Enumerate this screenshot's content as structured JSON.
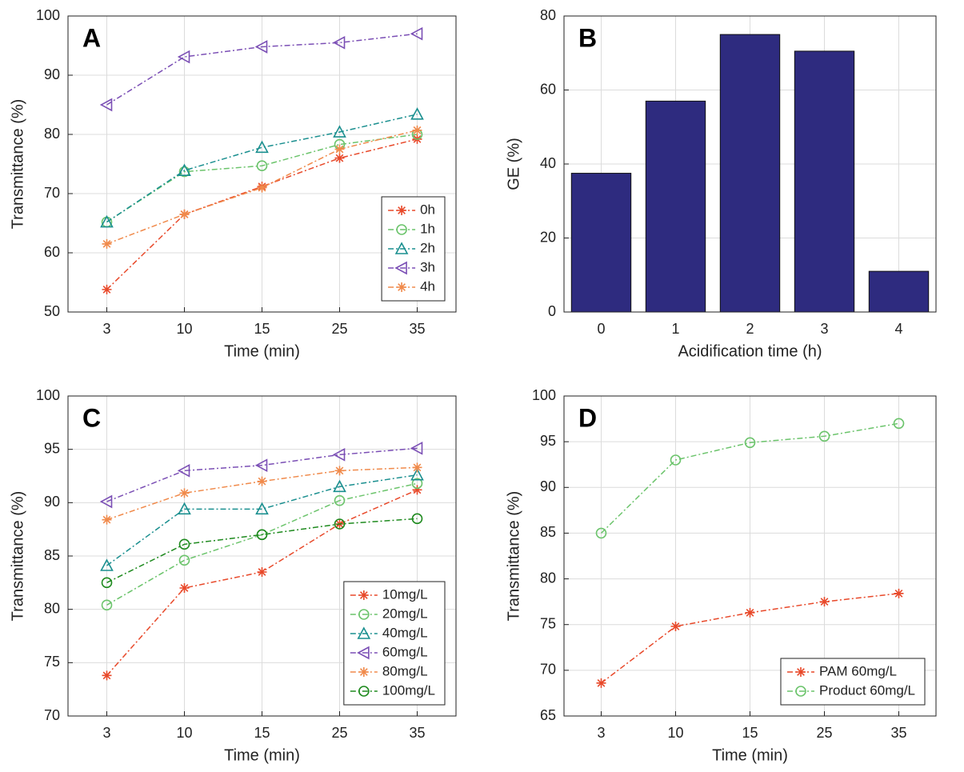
{
  "chart_data": [
    {
      "type": "line",
      "panel_label": "A",
      "xlabel": "Time (min)",
      "ylabel": "Transmittance (%)",
      "categories": [
        "3",
        "10",
        "15",
        "25",
        "35"
      ],
      "ylim": [
        50,
        100
      ],
      "yticks": [
        50,
        60,
        70,
        80,
        90,
        100
      ],
      "grid": true,
      "legend": "lower right",
      "series": [
        {
          "name": "0h",
          "color": "#e8492a",
          "marker": "star",
          "values": [
            53.8,
            66.5,
            71.2,
            76,
            79.2
          ]
        },
        {
          "name": "1h",
          "color": "#6cc46c",
          "marker": "circle",
          "values": [
            65.2,
            73.7,
            74.7,
            78.3,
            80
          ]
        },
        {
          "name": "2h",
          "color": "#1a8f8f",
          "marker": "triangle-up",
          "values": [
            65.2,
            73.9,
            77.8,
            80.4,
            83.4
          ]
        },
        {
          "name": "3h",
          "color": "#7b4fb5",
          "marker": "triangle-left",
          "values": [
            85,
            93.1,
            94.8,
            95.5,
            97
          ]
        },
        {
          "name": "4h",
          "color": "#f08a4b",
          "marker": "star",
          "values": [
            61.5,
            66.5,
            71,
            77.5,
            80.7
          ]
        }
      ]
    },
    {
      "type": "bar",
      "panel_label": "B",
      "xlabel": "Acidification time (h)",
      "ylabel": "GE (%)",
      "categories": [
        "0",
        "1",
        "2",
        "3",
        "4"
      ],
      "values": [
        37.5,
        57,
        75,
        70.5,
        11
      ],
      "color": "#2e2b7f",
      "ylim": [
        0,
        80
      ],
      "yticks": [
        0,
        20,
        40,
        60,
        80
      ],
      "grid": true
    },
    {
      "type": "line",
      "panel_label": "C",
      "xlabel": "Time (min)",
      "ylabel": "Transmittance (%)",
      "categories": [
        "3",
        "10",
        "15",
        "25",
        "35"
      ],
      "ylim": [
        70,
        100
      ],
      "yticks": [
        70,
        75,
        80,
        85,
        90,
        95,
        100
      ],
      "grid": true,
      "legend": "lower right",
      "series": [
        {
          "name": "10mg/L",
          "color": "#e8492a",
          "marker": "star",
          "values": [
            73.8,
            82,
            83.5,
            88,
            91.2
          ]
        },
        {
          "name": "20mg/L",
          "color": "#6cc46c",
          "marker": "circle",
          "values": [
            80.4,
            84.6,
            87,
            90.2,
            91.8
          ]
        },
        {
          "name": "40mg/L",
          "color": "#1a8f8f",
          "marker": "triangle-up",
          "values": [
            84.1,
            89.4,
            89.4,
            91.5,
            92.6
          ]
        },
        {
          "name": "60mg/L",
          "color": "#7b4fb5",
          "marker": "triangle-left",
          "values": [
            90.1,
            93,
            93.5,
            94.5,
            95.1
          ]
        },
        {
          "name": "80mg/L",
          "color": "#f08a4b",
          "marker": "star",
          "values": [
            88.4,
            90.9,
            92,
            93,
            93.3
          ]
        },
        {
          "name": "100mg/L",
          "color": "#1e8a1e",
          "marker": "circle",
          "values": [
            82.5,
            86.1,
            87,
            88,
            88.5
          ]
        }
      ]
    },
    {
      "type": "line",
      "panel_label": "D",
      "xlabel": "Time (min)",
      "ylabel": "Transmittance (%)",
      "categories": [
        "3",
        "10",
        "15",
        "25",
        "35"
      ],
      "ylim": [
        65,
        100
      ],
      "yticks": [
        65,
        70,
        75,
        80,
        85,
        90,
        95,
        100
      ],
      "grid": true,
      "legend": "lower right",
      "series": [
        {
          "name": "PAM 60mg/L",
          "color": "#e8492a",
          "marker": "star",
          "values": [
            68.6,
            74.8,
            76.3,
            77.5,
            78.4
          ]
        },
        {
          "name": "Product 60mg/L",
          "color": "#6cc46c",
          "marker": "circle",
          "values": [
            85,
            93,
            94.9,
            95.6,
            97
          ]
        }
      ]
    }
  ]
}
